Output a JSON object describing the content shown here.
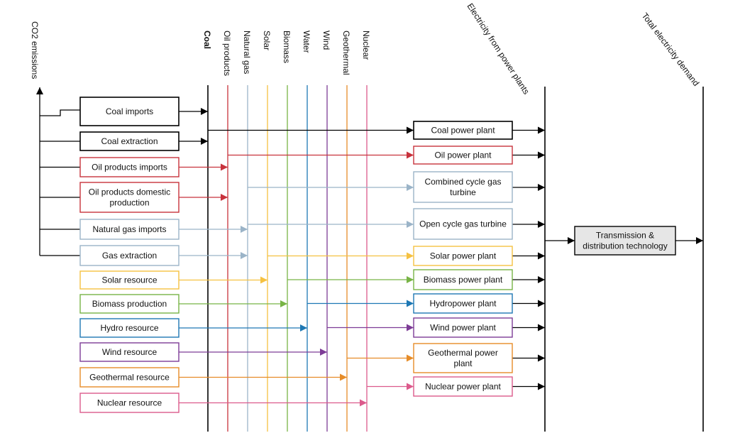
{
  "co2_label": "CO2 emissions",
  "carriers": [
    {
      "key": "coal",
      "label": "Coal",
      "color": "#000000",
      "bold": true
    },
    {
      "key": "oil",
      "label": "Oil products",
      "color": "#c8323c",
      "bold": false
    },
    {
      "key": "gas",
      "label": "Natural gas",
      "color": "#9bb4c8",
      "bold": false
    },
    {
      "key": "solar",
      "label": "Solar",
      "color": "#f5c141",
      "bold": false
    },
    {
      "key": "biomass",
      "label": "Biomass",
      "color": "#78b446",
      "bold": false
    },
    {
      "key": "water",
      "label": "Water",
      "color": "#1e78b4",
      "bold": false
    },
    {
      "key": "wind",
      "label": "Wind",
      "color": "#7d3c96",
      "bold": false
    },
    {
      "key": "geo",
      "label": "Geothermal",
      "color": "#e68c28",
      "bold": false
    },
    {
      "key": "nuclear",
      "label": "Nuclear",
      "color": "#dc5a8c",
      "bold": false
    }
  ],
  "electricity_label": "Electricity from power plants",
  "demand_label": "Total electricity demand",
  "resources": [
    {
      "key": "coal-imports",
      "lines": [
        "Coal imports"
      ],
      "carrier": "coal",
      "co2": true
    },
    {
      "key": "coal-extraction",
      "lines": [
        "Coal extraction"
      ],
      "carrier": "coal",
      "co2": true
    },
    {
      "key": "oil-imports",
      "lines": [
        "Oil products imports"
      ],
      "carrier": "oil",
      "co2": true
    },
    {
      "key": "oil-domestic",
      "lines": [
        "Oil products domestic",
        "production"
      ],
      "carrier": "oil",
      "co2": true
    },
    {
      "key": "gas-imports",
      "lines": [
        "Natural gas imports"
      ],
      "carrier": "gas",
      "co2": true
    },
    {
      "key": "gas-extraction",
      "lines": [
        "Gas extraction"
      ],
      "carrier": "gas",
      "co2": true
    },
    {
      "key": "solar-resource",
      "lines": [
        "Solar resource"
      ],
      "carrier": "solar",
      "co2": false
    },
    {
      "key": "biomass-production",
      "lines": [
        "Biomass production"
      ],
      "carrier": "biomass",
      "co2": false
    },
    {
      "key": "hydro-resource",
      "lines": [
        "Hydro resource"
      ],
      "carrier": "water",
      "co2": false
    },
    {
      "key": "wind-resource",
      "lines": [
        "Wind resource"
      ],
      "carrier": "wind",
      "co2": false
    },
    {
      "key": "geothermal-resource",
      "lines": [
        "Geothermal resource"
      ],
      "carrier": "geo",
      "co2": false
    },
    {
      "key": "nuclear-resource",
      "lines": [
        "Nuclear resource"
      ],
      "carrier": "nuclear",
      "co2": false
    }
  ],
  "plants": [
    {
      "key": "coal-plant",
      "lines": [
        "Coal power plant"
      ],
      "carrier": "coal"
    },
    {
      "key": "oil-plant",
      "lines": [
        "Oil power plant"
      ],
      "carrier": "oil"
    },
    {
      "key": "ccgt",
      "lines": [
        "Combined cycle gas",
        "turbine"
      ],
      "carrier": "gas"
    },
    {
      "key": "ocgt",
      "lines": [
        "Open cycle gas turbine"
      ],
      "carrier": "gas"
    },
    {
      "key": "solar-plant",
      "lines": [
        "Solar power plant"
      ],
      "carrier": "solar"
    },
    {
      "key": "biomass-plant",
      "lines": [
        "Biomass power plant"
      ],
      "carrier": "biomass"
    },
    {
      "key": "hydro-plant",
      "lines": [
        "Hydropower plant"
      ],
      "carrier": "water"
    },
    {
      "key": "wind-plant",
      "lines": [
        "Wind power plant"
      ],
      "carrier": "wind"
    },
    {
      "key": "geothermal-plant",
      "lines": [
        "Geothermal power",
        "plant"
      ],
      "carrier": "geo"
    },
    {
      "key": "nuclear-plant",
      "lines": [
        "Nuclear power plant"
      ],
      "carrier": "nuclear"
    }
  ],
  "transmission": {
    "lines": [
      "Transmission &",
      "distribution technology"
    ],
    "fill": "#e6e6e6"
  }
}
